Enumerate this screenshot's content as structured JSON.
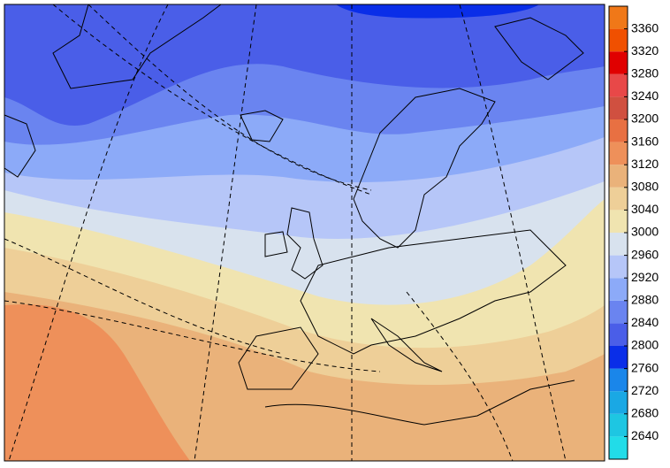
{
  "colorbar": {
    "ticks": [
      2640,
      2680,
      2720,
      2760,
      2800,
      2840,
      2880,
      2920,
      2960,
      3000,
      3040,
      3080,
      3120,
      3160,
      3200,
      3240,
      3280,
      3320,
      3360
    ],
    "colors": [
      "#22dce8",
      "#1ec6e2",
      "#1aa8e4",
      "#1a86ea",
      "#0a2ee8",
      "#4a5ee8",
      "#6a84f0",
      "#8caaf8",
      "#b6c6f8",
      "#d8e2ee",
      "#f0e4b0",
      "#eecf98",
      "#eab27a",
      "#ee905a",
      "#e87042",
      "#d05040",
      "#e84848",
      "#e00000",
      "#f05000",
      "#f07818"
    ]
  }
}
